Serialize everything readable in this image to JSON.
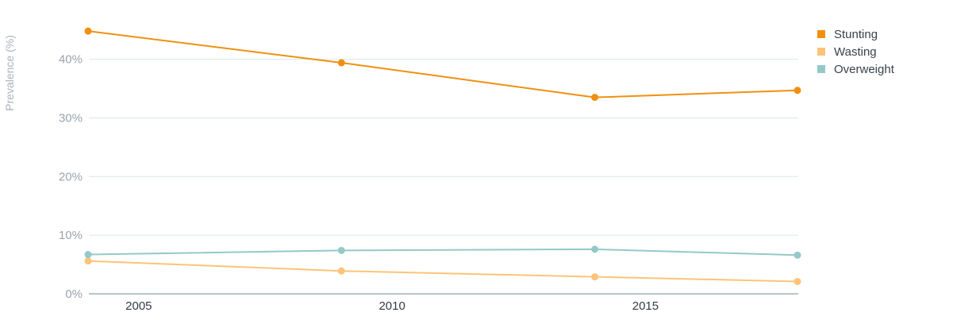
{
  "chart_data": {
    "type": "line",
    "title": "",
    "xlabel": "",
    "ylabel": "Prevalence (%)",
    "x": [
      2004,
      2009,
      2014,
      2018
    ],
    "x_ticks": [
      "2005",
      "2010",
      "2015"
    ],
    "x_tick_values": [
      2005,
      2010,
      2015
    ],
    "xlim": [
      2004,
      2018
    ],
    "y_ticks": [
      "0%",
      "10%",
      "20%",
      "30%",
      "40%"
    ],
    "y_tick_values": [
      0,
      10,
      20,
      30,
      40
    ],
    "ylim": [
      0,
      45
    ],
    "grid": true,
    "legend_position": "top-right",
    "series": [
      {
        "name": "Stunting",
        "color": "#f0900e",
        "values": [
          44.8,
          39.4,
          33.5,
          34.7
        ]
      },
      {
        "name": "Wasting",
        "color": "#fcc478",
        "values": [
          5.6,
          3.9,
          2.9,
          2.1
        ]
      },
      {
        "name": "Overweight",
        "color": "#94c9c8",
        "values": [
          6.7,
          7.4,
          7.6,
          6.6
        ]
      }
    ],
    "colors": {
      "gridline": "#d6e8e6",
      "axis": "#9fb2b5"
    }
  }
}
